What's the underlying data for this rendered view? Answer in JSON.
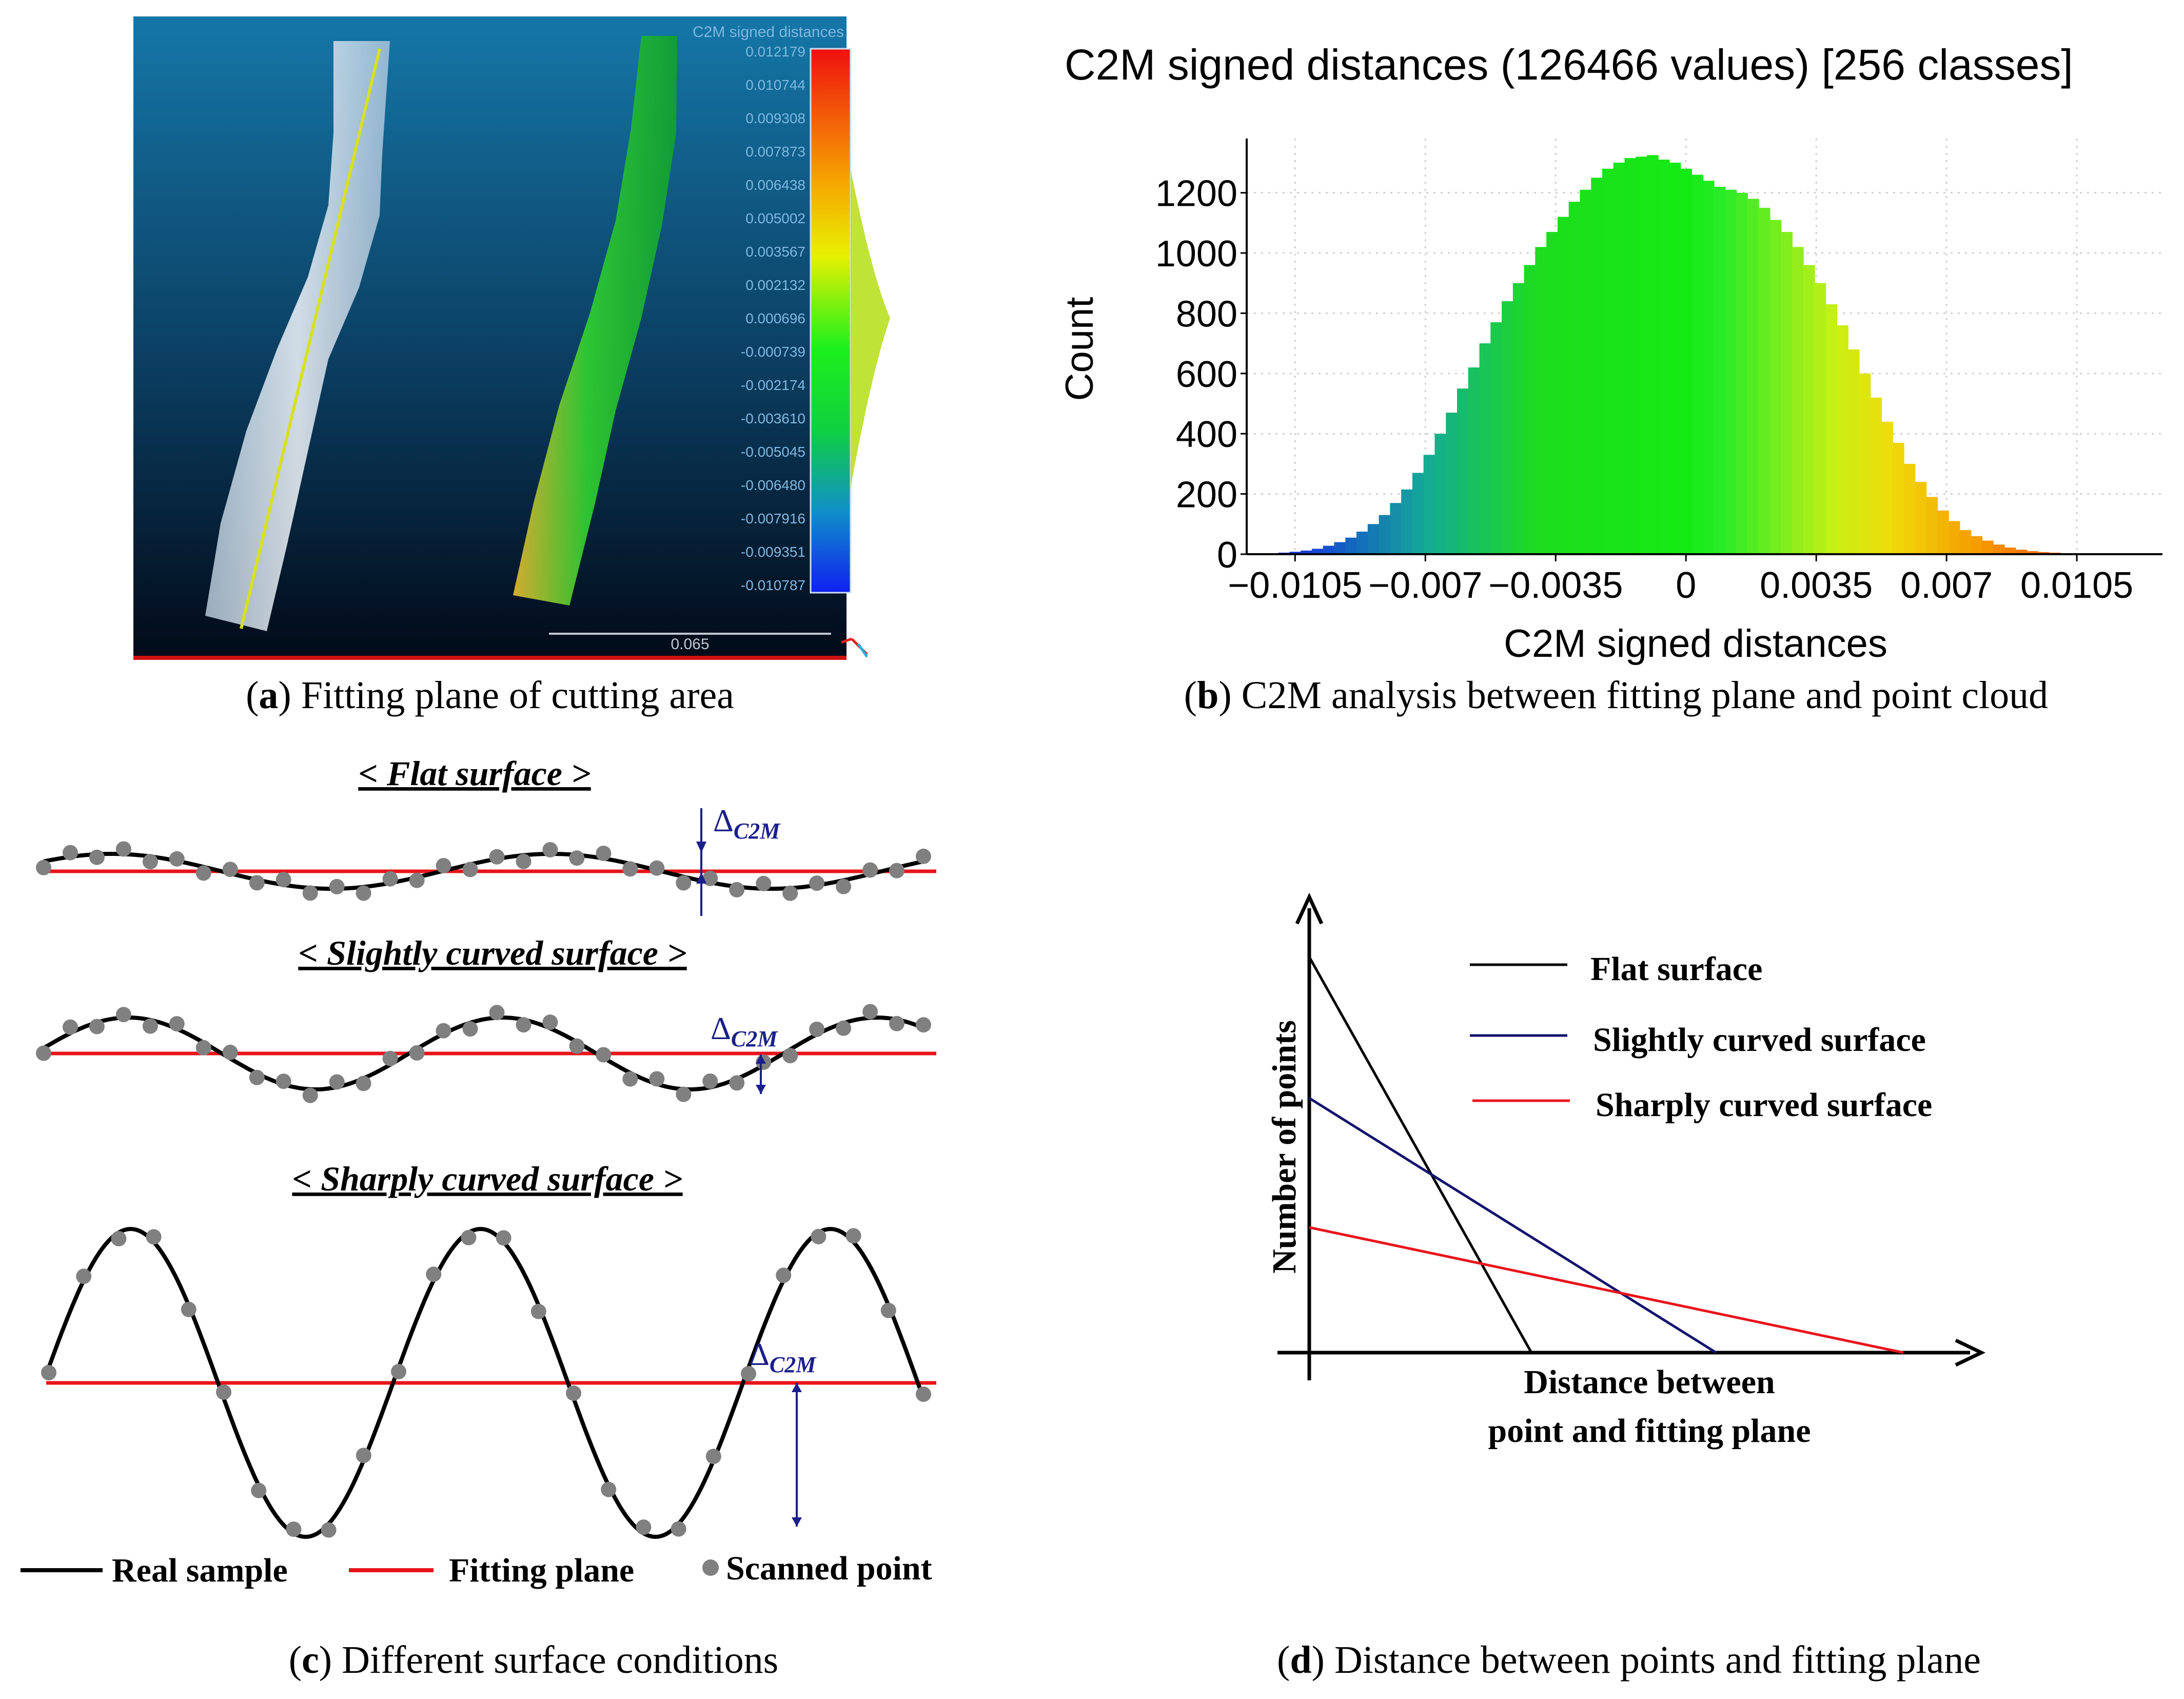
{
  "panel_a": {
    "caption_letter": "a",
    "caption_text": "Fitting plane of cutting area",
    "scalebar_title": "C2M signed distances",
    "scale_values": [
      "0.012179",
      "0.010744",
      "0.009308",
      "0.007873",
      "0.006438",
      "0.005002",
      "0.003567",
      "0.002132",
      "0.000696",
      "-0.000739",
      "-0.002174",
      "-0.003610",
      "-0.005045",
      "-0.006480",
      "-0.007916",
      "-0.009351",
      "-0.010787"
    ],
    "scale_length": "0.065"
  },
  "panel_b": {
    "caption_letter": "b",
    "caption_text": "C2M analysis between fitting plane and point cloud",
    "chart_data": {
      "type": "bar",
      "title": "C2M signed distances (126466 values)  [256 classes]",
      "xlabel": "C2M signed distances",
      "ylabel": "Count",
      "xlim": [
        -0.0118,
        0.0128
      ],
      "ylim": [
        0,
        1380
      ],
      "xticks": [
        -0.0105,
        -0.007,
        -0.0035,
        0,
        0.0035,
        0.007,
        0.0105
      ],
      "xtick_labels": [
        "-0.0105",
        "-0.007",
        "-0.0035",
        "0",
        "0.0035",
        "0.007",
        "0.0105"
      ],
      "yticks": [
        0,
        200,
        400,
        600,
        800,
        1000,
        1200
      ],
      "ytick_labels": [
        "0",
        "200",
        "400",
        "600",
        "800",
        "1000",
        "1200"
      ],
      "grid": true,
      "series": [
        {
          "name": "C2M signed distances",
          "x": [
            -0.0108,
            -0.0105,
            -0.0102,
            -0.0099,
            -0.0096,
            -0.0093,
            -0.009,
            -0.0087,
            -0.0084,
            -0.0081,
            -0.0078,
            -0.0075,
            -0.0072,
            -0.0069,
            -0.0066,
            -0.0063,
            -0.006,
            -0.0057,
            -0.0054,
            -0.0051,
            -0.0048,
            -0.0045,
            -0.0042,
            -0.0039,
            -0.0036,
            -0.0033,
            -0.003,
            -0.0027,
            -0.0024,
            -0.0021,
            -0.0018,
            -0.0015,
            -0.0012,
            -0.0009,
            -0.0006,
            -0.0003,
            0,
            0.0003,
            0.0006,
            0.0009,
            0.0012,
            0.0015,
            0.0018,
            0.0021,
            0.0024,
            0.0027,
            0.003,
            0.0033,
            0.0036,
            0.0039,
            0.0042,
            0.0045,
            0.0048,
            0.0051,
            0.0054,
            0.0057,
            0.006,
            0.0063,
            0.0066,
            0.0069,
            0.0072,
            0.0075,
            0.0078,
            0.0081,
            0.0084,
            0.0087,
            0.009,
            0.0093,
            0.0096,
            0.0099,
            0.0102,
            0.0105,
            0.0108,
            0.0111,
            0.0114,
            0.0117,
            0.012
          ],
          "values": [
            5,
            8,
            12,
            18,
            28,
            40,
            55,
            75,
            100,
            130,
            170,
            215,
            270,
            330,
            400,
            470,
            550,
            620,
            700,
            770,
            840,
            900,
            960,
            1020,
            1070,
            1120,
            1170,
            1210,
            1250,
            1280,
            1300,
            1315,
            1320,
            1325,
            1310,
            1300,
            1280,
            1260,
            1240,
            1220,
            1210,
            1200,
            1180,
            1150,
            1110,
            1070,
            1020,
            960,
            900,
            830,
            760,
            680,
            600,
            520,
            440,
            370,
            300,
            240,
            190,
            145,
            110,
            80,
            60,
            45,
            32,
            22,
            15,
            10,
            7,
            5,
            3,
            2,
            2,
            1,
            1,
            1,
            1
          ]
        }
      ]
    }
  },
  "panel_c": {
    "caption_letter": "c",
    "caption_text": "Different surface conditions",
    "titles": [
      "< Flat surface >",
      "< Slightly curved surface >",
      "< Sharply curved surface >"
    ],
    "delta_symbol": "Δ",
    "delta_subscript": "C2M",
    "legend": {
      "real_sample": "Real sample",
      "fitting_plane": "Fitting plane",
      "scanned_point": "Scanned point"
    },
    "colors": {
      "sample": "#000000",
      "fit": "#e8141b",
      "point": "#808080",
      "marker": "#1b1f8a"
    }
  },
  "panel_d": {
    "caption_letter": "d",
    "caption_text": "Distance between points and fitting plane",
    "ylabel": "Number of points",
    "xlabel_line1": "Distance between",
    "xlabel_line2": "point and fitting plane",
    "legend": [
      "Flat surface",
      "Slightly curved surface",
      "Sharply curved surface"
    ],
    "colors": [
      "#000000",
      "#14146e",
      "#e8141b"
    ]
  }
}
